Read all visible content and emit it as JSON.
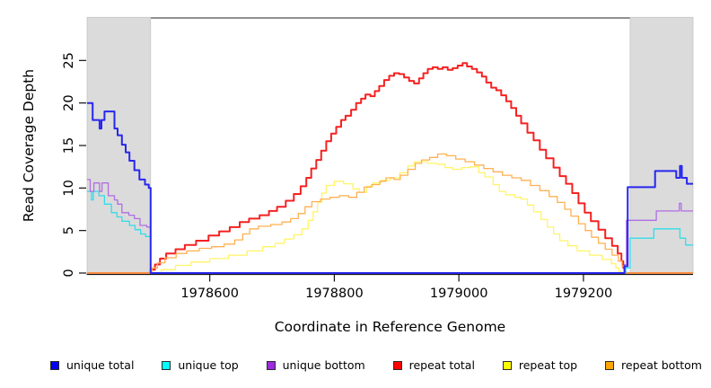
{
  "chart_data": {
    "type": "line",
    "title": "",
    "xlabel": "Coordinate in Reference Genome",
    "ylabel": "Read Coverage Depth",
    "xlim": [
      1978403,
      1979376
    ],
    "ylim": [
      0,
      30
    ],
    "xticks": [
      1978600,
      1978800,
      1979000,
      1979200
    ],
    "yticks": [
      0,
      5,
      10,
      15,
      20,
      25
    ],
    "grid": false,
    "legend_position": "bottom",
    "step": true,
    "shaded_regions": [
      {
        "x0": 1978403,
        "x1": 1978505,
        "color": "#dbdbdb"
      },
      {
        "x0": 1979275,
        "x1": 1979376,
        "color": "#dbdbdb"
      }
    ],
    "draw_order": [
      "repeat total",
      "repeat top",
      "repeat bottom",
      "unique top",
      "unique bottom",
      "unique total"
    ],
    "series": [
      {
        "name": "unique total",
        "legend_color": "#0000ee",
        "line_color": "#2727ee",
        "lwd": 2,
        "points": [
          [
            1978403,
            20
          ],
          [
            1978412,
            18
          ],
          [
            1978423,
            17
          ],
          [
            1978426,
            18
          ],
          [
            1978431,
            19
          ],
          [
            1978447,
            17
          ],
          [
            1978452,
            16.2
          ],
          [
            1978459,
            15.1
          ],
          [
            1978465,
            14.2
          ],
          [
            1978471,
            13.2
          ],
          [
            1978479,
            12.1
          ],
          [
            1978487,
            11
          ],
          [
            1978496,
            10.4
          ],
          [
            1978502,
            10
          ],
          [
            1978505,
            0
          ],
          [
            1979266,
            0.8
          ],
          [
            1979271,
            10.1
          ],
          [
            1979315,
            12
          ],
          [
            1979349,
            11.2
          ],
          [
            1979355,
            12.6
          ],
          [
            1979358,
            11.2
          ],
          [
            1979366,
            10.5
          ],
          [
            1979376,
            10.5
          ]
        ]
      },
      {
        "name": "unique top",
        "legend_color": "#00ffff",
        "line_color": "#33dce8",
        "lwd": 1.3,
        "points": [
          [
            1978403,
            9.6
          ],
          [
            1978410,
            8.6
          ],
          [
            1978413,
            9.6
          ],
          [
            1978422,
            9.1
          ],
          [
            1978431,
            8.1
          ],
          [
            1978442,
            7.1
          ],
          [
            1978451,
            6.6
          ],
          [
            1978459,
            6.1
          ],
          [
            1978471,
            5.6
          ],
          [
            1978480,
            5.1
          ],
          [
            1978489,
            4.6
          ],
          [
            1978497,
            4.3
          ],
          [
            1978505,
            0
          ],
          [
            1979268,
            0.6
          ],
          [
            1979275,
            4.1
          ],
          [
            1979313,
            5.2
          ],
          [
            1979355,
            4.1
          ],
          [
            1979364,
            3.3
          ],
          [
            1979376,
            3.3
          ]
        ]
      },
      {
        "name": "unique bottom",
        "legend_color": "#9c2be0",
        "line_color": "#b06ee3",
        "lwd": 1.3,
        "points": [
          [
            1978403,
            11
          ],
          [
            1978408,
            9.6
          ],
          [
            1978414,
            10.6
          ],
          [
            1978423,
            9.6
          ],
          [
            1978427,
            10.6
          ],
          [
            1978437,
            9.1
          ],
          [
            1978447,
            8.6
          ],
          [
            1978452,
            8.1
          ],
          [
            1978459,
            7.1
          ],
          [
            1978470,
            6.8
          ],
          [
            1978479,
            6.4
          ],
          [
            1978488,
            5.6
          ],
          [
            1978499,
            5.4
          ],
          [
            1978505,
            0
          ],
          [
            1979266,
            1
          ],
          [
            1979269,
            6.2
          ],
          [
            1979317,
            7.3
          ],
          [
            1979354,
            8.2
          ],
          [
            1979357,
            7.3
          ],
          [
            1979376,
            7.3
          ]
        ]
      },
      {
        "name": "repeat total",
        "legend_color": "#ff0000",
        "line_color": "#f52121",
        "lwd": 2,
        "points": [
          [
            1978403,
            0
          ],
          [
            1978505,
            0.4
          ],
          [
            1978512,
            1
          ],
          [
            1978520,
            1.7
          ],
          [
            1978530,
            2.3
          ],
          [
            1978545,
            2.8
          ],
          [
            1978560,
            3.3
          ],
          [
            1978578,
            3.8
          ],
          [
            1978598,
            4.4
          ],
          [
            1978615,
            4.9
          ],
          [
            1978632,
            5.4
          ],
          [
            1978648,
            6
          ],
          [
            1978663,
            6.4
          ],
          [
            1978680,
            6.8
          ],
          [
            1978695,
            7.3
          ],
          [
            1978708,
            7.8
          ],
          [
            1978722,
            8.5
          ],
          [
            1978735,
            9.3
          ],
          [
            1978746,
            10.2
          ],
          [
            1978755,
            11.2
          ],
          [
            1978763,
            12.3
          ],
          [
            1978771,
            13.3
          ],
          [
            1978779,
            14.4
          ],
          [
            1978787,
            15.5
          ],
          [
            1978795,
            16.4
          ],
          [
            1978803,
            17.2
          ],
          [
            1978811,
            18
          ],
          [
            1978818,
            18.5
          ],
          [
            1978827,
            19.2
          ],
          [
            1978835,
            20
          ],
          [
            1978843,
            20.5
          ],
          [
            1978850,
            21
          ],
          [
            1978858,
            20.8
          ],
          [
            1978865,
            21.4
          ],
          [
            1978872,
            22
          ],
          [
            1978880,
            22.7
          ],
          [
            1978888,
            23.2
          ],
          [
            1978896,
            23.5
          ],
          [
            1978904,
            23.4
          ],
          [
            1978912,
            23
          ],
          [
            1978920,
            22.6
          ],
          [
            1978928,
            22.3
          ],
          [
            1978936,
            22.9
          ],
          [
            1978943,
            23.5
          ],
          [
            1978950,
            24
          ],
          [
            1978958,
            24.2
          ],
          [
            1978966,
            24
          ],
          [
            1978974,
            24.2
          ],
          [
            1978982,
            23.9
          ],
          [
            1978990,
            24.1
          ],
          [
            1978998,
            24.4
          ],
          [
            1979006,
            24.7
          ],
          [
            1979013,
            24.3
          ],
          [
            1979021,
            24
          ],
          [
            1979029,
            23.6
          ],
          [
            1979037,
            23.1
          ],
          [
            1979044,
            22.4
          ],
          [
            1979052,
            21.8
          ],
          [
            1979060,
            21.5
          ],
          [
            1979068,
            20.9
          ],
          [
            1979076,
            20.2
          ],
          [
            1979084,
            19.4
          ],
          [
            1979092,
            18.5
          ],
          [
            1979100,
            17.6
          ],
          [
            1979110,
            16.5
          ],
          [
            1979120,
            15.6
          ],
          [
            1979130,
            14.5
          ],
          [
            1979140,
            13.5
          ],
          [
            1979152,
            12.4
          ],
          [
            1979162,
            11.4
          ],
          [
            1979172,
            10.5
          ],
          [
            1979182,
            9.4
          ],
          [
            1979192,
            8.2
          ],
          [
            1979202,
            7.1
          ],
          [
            1979212,
            6.1
          ],
          [
            1979224,
            5.1
          ],
          [
            1979235,
            4.1
          ],
          [
            1979246,
            3.2
          ],
          [
            1979255,
            2.3
          ],
          [
            1979261,
            1.4
          ],
          [
            1979264,
            0.6
          ],
          [
            1979266,
            0
          ],
          [
            1979376,
            0
          ]
        ]
      },
      {
        "name": "repeat top",
        "legend_color": "#ffff00",
        "line_color": "#fff467",
        "lwd": 1.3,
        "points": [
          [
            1978403,
            0
          ],
          [
            1978512,
            0
          ],
          [
            1978522,
            0.4
          ],
          [
            1978545,
            0.9
          ],
          [
            1978570,
            1.3
          ],
          [
            1978600,
            1.7
          ],
          [
            1978630,
            2.1
          ],
          [
            1978660,
            2.6
          ],
          [
            1978685,
            3.1
          ],
          [
            1978705,
            3.5
          ],
          [
            1978720,
            4
          ],
          [
            1978735,
            4.5
          ],
          [
            1978748,
            5.2
          ],
          [
            1978758,
            6.2
          ],
          [
            1978766,
            7.2
          ],
          [
            1978773,
            8.3
          ],
          [
            1978780,
            9.4
          ],
          [
            1978787,
            10.3
          ],
          [
            1978800,
            10.8
          ],
          [
            1978815,
            10.5
          ],
          [
            1978830,
            9.9
          ],
          [
            1978840,
            9.5
          ],
          [
            1978852,
            10.2
          ],
          [
            1978862,
            10.6
          ],
          [
            1978875,
            10.9
          ],
          [
            1978890,
            11.2
          ],
          [
            1978905,
            11.8
          ],
          [
            1978918,
            12.6
          ],
          [
            1978928,
            13.1
          ],
          [
            1978950,
            12.9
          ],
          [
            1978965,
            12.8
          ],
          [
            1978978,
            12.4
          ],
          [
            1978990,
            12.2
          ],
          [
            1979005,
            12.4
          ],
          [
            1979018,
            12.5
          ],
          [
            1979032,
            11.8
          ],
          [
            1979042,
            11.3
          ],
          [
            1979055,
            10.4
          ],
          [
            1979065,
            9.6
          ],
          [
            1979075,
            9.2
          ],
          [
            1979090,
            8.9
          ],
          [
            1979100,
            8.7
          ],
          [
            1979110,
            8
          ],
          [
            1979120,
            7.2
          ],
          [
            1979132,
            6.3
          ],
          [
            1979142,
            5.4
          ],
          [
            1979152,
            4.6
          ],
          [
            1979162,
            3.8
          ],
          [
            1979175,
            3.2
          ],
          [
            1979190,
            2.6
          ],
          [
            1979210,
            2.1
          ],
          [
            1979230,
            1.6
          ],
          [
            1979245,
            1.1
          ],
          [
            1979252,
            0.6
          ],
          [
            1979257,
            0.2
          ],
          [
            1979260,
            0
          ],
          [
            1979376,
            0
          ]
        ]
      },
      {
        "name": "repeat bottom",
        "legend_color": "#ffa500",
        "line_color": "#ffb052",
        "lwd": 1.3,
        "points": [
          [
            1978403,
            0
          ],
          [
            1978507,
            0.6
          ],
          [
            1978516,
            1.2
          ],
          [
            1978528,
            1.8
          ],
          [
            1978546,
            2.3
          ],
          [
            1978563,
            2.6
          ],
          [
            1978583,
            2.9
          ],
          [
            1978603,
            3.1
          ],
          [
            1978623,
            3.4
          ],
          [
            1978640,
            3.9
          ],
          [
            1978653,
            4.6
          ],
          [
            1978664,
            5.2
          ],
          [
            1978678,
            5.5
          ],
          [
            1978698,
            5.7
          ],
          [
            1978716,
            6
          ],
          [
            1978730,
            6.4
          ],
          [
            1978742,
            7
          ],
          [
            1978753,
            7.8
          ],
          [
            1978764,
            8.4
          ],
          [
            1978778,
            8.7
          ],
          [
            1978793,
            8.9
          ],
          [
            1978808,
            9.1
          ],
          [
            1978823,
            8.9
          ],
          [
            1978836,
            9.5
          ],
          [
            1978848,
            10.1
          ],
          [
            1978860,
            10.4
          ],
          [
            1978873,
            10.8
          ],
          [
            1978883,
            11.2
          ],
          [
            1978896,
            11
          ],
          [
            1978906,
            11.5
          ],
          [
            1978918,
            12.2
          ],
          [
            1978930,
            12.9
          ],
          [
            1978940,
            13.3
          ],
          [
            1978953,
            13.6
          ],
          [
            1978966,
            14
          ],
          [
            1978980,
            13.8
          ],
          [
            1978995,
            13.4
          ],
          [
            1979010,
            13.1
          ],
          [
            1979025,
            12.7
          ],
          [
            1979040,
            12.3
          ],
          [
            1979055,
            11.9
          ],
          [
            1979070,
            11.5
          ],
          [
            1979085,
            11.2
          ],
          [
            1979100,
            10.9
          ],
          [
            1979115,
            10.3
          ],
          [
            1979130,
            9.7
          ],
          [
            1979145,
            9
          ],
          [
            1979158,
            8.3
          ],
          [
            1979170,
            7.5
          ],
          [
            1979180,
            6.7
          ],
          [
            1979192,
            5.8
          ],
          [
            1979203,
            5
          ],
          [
            1979213,
            4.2
          ],
          [
            1979224,
            3.5
          ],
          [
            1979235,
            2.8
          ],
          [
            1979246,
            2.1
          ],
          [
            1979256,
            1.4
          ],
          [
            1979262,
            0.8
          ],
          [
            1979266,
            0.3
          ],
          [
            1979268,
            0
          ],
          [
            1979376,
            0
          ]
        ]
      }
    ]
  }
}
